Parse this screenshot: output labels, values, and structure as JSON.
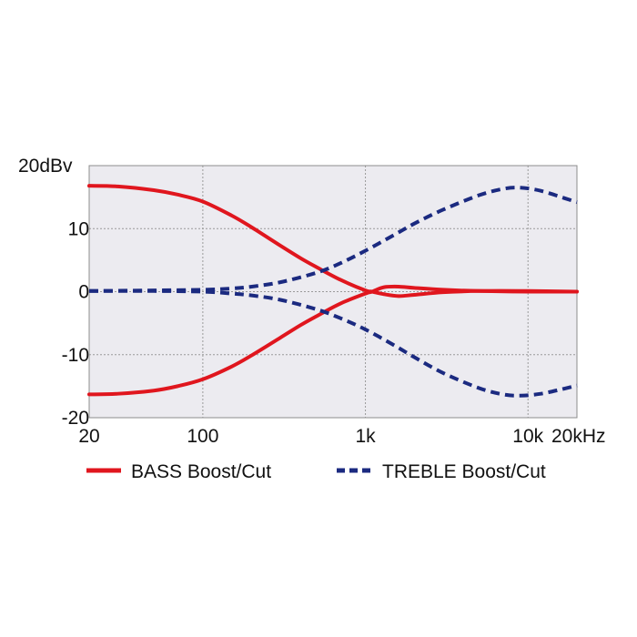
{
  "chart_data": {
    "type": "line",
    "x_scale": "log",
    "xlim": [
      20,
      20000
    ],
    "ylim": [
      -20,
      20
    ],
    "grid": true,
    "legend_position": "bottom",
    "x_ticks": [
      {
        "value": 20,
        "label": "20"
      },
      {
        "value": 100,
        "label": "100"
      },
      {
        "value": 1000,
        "label": "1k"
      },
      {
        "value": 10000,
        "label": "10k"
      },
      {
        "value": 20000,
        "label": "20kHz"
      }
    ],
    "y_ticks": [
      {
        "value": 20,
        "label": "20dBv"
      },
      {
        "value": 10,
        "label": "10"
      },
      {
        "value": 0,
        "label": "0"
      },
      {
        "value": -10,
        "label": "-10"
      },
      {
        "value": -20,
        "label": "-20"
      }
    ],
    "series": [
      {
        "name": "BASS Boost/Cut",
        "color": "#e0161e",
        "style": "solid",
        "curves": [
          {
            "x": [
              20,
              30,
              50,
              70,
              100,
              150,
              200,
              300,
              400,
              500,
              700,
              1000,
              1100,
              1300,
              1600,
              2000,
              3000,
              5000,
              10000,
              20000
            ],
            "y": [
              16.8,
              16.7,
              16.1,
              15.4,
              14.3,
              12.1,
              10.2,
              7.3,
              5.3,
              3.9,
              1.9,
              0.2,
              0.0,
              -0.4,
              -0.7,
              -0.5,
              -0.1,
              0.1,
              0.1,
              0.0
            ]
          },
          {
            "x": [
              20,
              30,
              50,
              70,
              100,
              150,
              200,
              300,
              400,
              500,
              700,
              1000,
              1100,
              1300,
              1600,
              2000,
              3000,
              5000,
              10000,
              20000
            ],
            "y": [
              -16.3,
              -16.2,
              -15.7,
              -15.0,
              -13.9,
              -11.9,
              -10.1,
              -7.3,
              -5.3,
              -3.9,
              -1.9,
              -0.3,
              0.0,
              0.7,
              0.8,
              0.6,
              0.3,
              0.1,
              0.0,
              0.0
            ]
          }
        ]
      },
      {
        "name": "TREBLE Boost/Cut",
        "color": "#1b2a80",
        "style": "dashed",
        "curves": [
          {
            "x": [
              20,
              50,
              100,
              150,
              200,
              300,
              500,
              700,
              1000,
              1500,
              2000,
              3000,
              5000,
              7000,
              9000,
              12000,
              16000,
              20000
            ],
            "y": [
              0.1,
              0.2,
              0.3,
              0.5,
              0.8,
              1.5,
              3.0,
              4.5,
              6.5,
              9.0,
              10.8,
              13.0,
              15.3,
              16.3,
              16.5,
              16.0,
              15.0,
              14.2
            ]
          },
          {
            "x": [
              20,
              50,
              100,
              150,
              200,
              300,
              500,
              700,
              1000,
              1500,
              2000,
              3000,
              5000,
              7000,
              9000,
              12000,
              16000,
              20000
            ],
            "y": [
              0.1,
              0.1,
              0.0,
              -0.3,
              -0.6,
              -1.3,
              -2.8,
              -4.2,
              -6.0,
              -8.5,
              -10.4,
              -12.9,
              -15.3,
              -16.3,
              -16.5,
              -16.2,
              -15.5,
              -14.9
            ]
          }
        ]
      }
    ]
  }
}
